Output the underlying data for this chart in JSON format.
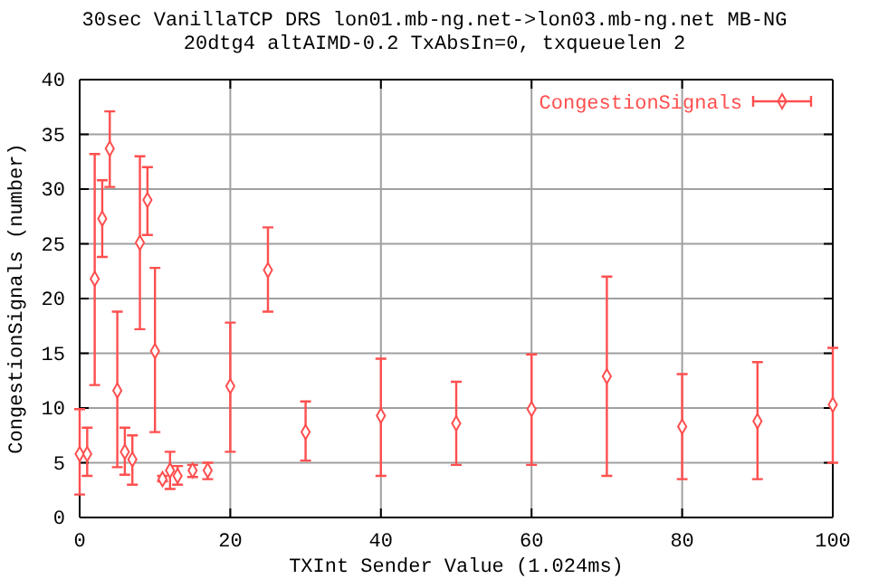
{
  "chart_data": {
    "type": "scatter",
    "title": "30sec VanillaTCP DRS lon01.mb-ng.net->lon03.mb-ng.net MB-NG",
    "subtitle": "20dtg4 altAIMD-0.2 TxAbsIn=0, txqueuelen 2",
    "xlabel": "TXInt Sender Value (1.024ms)",
    "ylabel": "CongestionSignals (number)",
    "x": [
      0,
      1,
      2,
      3,
      4,
      5,
      6,
      7,
      8,
      9,
      10,
      11,
      12,
      13,
      15,
      17,
      20,
      25,
      30,
      40,
      50,
      60,
      70,
      80,
      90,
      100
    ],
    "series": [
      {
        "name": "CongestionSignals",
        "color": "#ff4f4f",
        "values": [
          5.8,
          5.8,
          21.8,
          27.3,
          33.7,
          11.6,
          6.0,
          5.3,
          25.1,
          29.0,
          15.2,
          3.5,
          4.3,
          3.8,
          4.3,
          4.3,
          12.0,
          22.6,
          7.8,
          9.3,
          8.6,
          9.9,
          12.9,
          8.3,
          8.8,
          10.3
        ],
        "errors": [
          [
            2.1,
            9.9
          ],
          [
            3.8,
            8.2
          ],
          [
            12.1,
            33.2
          ],
          [
            23.8,
            30.8
          ],
          [
            30.2,
            37.1
          ],
          [
            4.6,
            18.8
          ],
          [
            3.9,
            8.2
          ],
          [
            3.0,
            7.5
          ],
          [
            17.2,
            33.0
          ],
          [
            25.8,
            32.0
          ],
          [
            7.8,
            22.8
          ],
          [
            3.3,
            3.8
          ],
          [
            2.6,
            6.0
          ],
          [
            3.0,
            4.7
          ],
          [
            3.7,
            4.8
          ],
          [
            3.5,
            5.0
          ],
          [
            6.0,
            17.8
          ],
          [
            18.8,
            26.5
          ],
          [
            5.2,
            10.6
          ],
          [
            3.8,
            14.5
          ],
          [
            4.8,
            12.4
          ],
          [
            4.8,
            14.9
          ],
          [
            3.8,
            22.0
          ],
          [
            3.5,
            13.1
          ],
          [
            3.5,
            14.2
          ],
          [
            5.0,
            15.5
          ]
        ]
      }
    ],
    "xlim": [
      0,
      100
    ],
    "xticks": [
      0,
      20,
      40,
      60,
      80,
      100
    ],
    "ylim": [
      0,
      40
    ],
    "yticks": [
      0,
      5,
      10,
      15,
      20,
      25,
      30,
      35,
      40
    ],
    "grid": true,
    "legend": "top right",
    "marker": "diamond"
  }
}
